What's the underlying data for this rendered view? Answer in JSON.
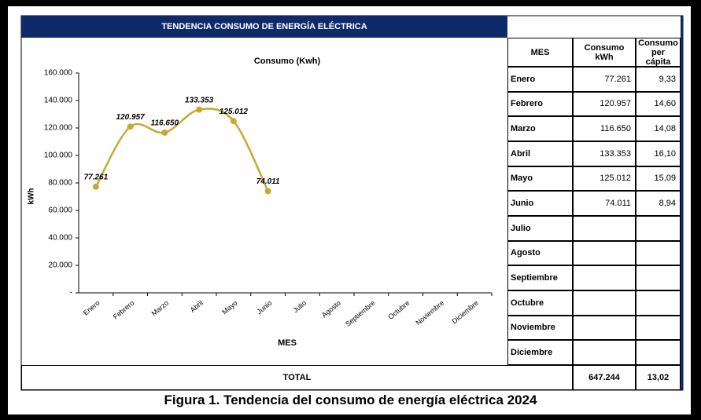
{
  "header": {
    "title": "TENDENCIA CONSUMO DE ENERGÍA ELÉCTRICA"
  },
  "caption": "Figura 1. Tendencia del consumo de energía eléctrica 2024",
  "chart_data": {
    "type": "line",
    "title": "Consumo (Kwh)",
    "x_label": "MES",
    "y_label": "kWh",
    "categories": [
      "Enero",
      "Febrero",
      "Marzo",
      "Abril",
      "Mayo",
      "Junio",
      "Julio",
      "Agosto",
      "Septiembre",
      "Octubre",
      "Noviembre",
      "Diciembre"
    ],
    "values": [
      77261,
      120957,
      116650,
      133353,
      125012,
      74011,
      null,
      null,
      null,
      null,
      null,
      null
    ],
    "value_labels": [
      "77.261",
      "120.957",
      "116.650",
      "133.353",
      "125.012",
      "74.011",
      null,
      null,
      null,
      null,
      null,
      null
    ],
    "color": "#c9a832",
    "ylim": [
      0,
      160000
    ],
    "yticks": [
      {
        "value": 0,
        "label": "-"
      },
      {
        "value": 20000,
        "label": "20.000"
      },
      {
        "value": 40000,
        "label": "40.000"
      },
      {
        "value": 60000,
        "label": "60.000"
      },
      {
        "value": 80000,
        "label": "80.000"
      },
      {
        "value": 100000,
        "label": "100.000"
      },
      {
        "value": 120000,
        "label": "120.000"
      },
      {
        "value": 140000,
        "label": "140.000"
      },
      {
        "value": 160000,
        "label": "160.000"
      }
    ],
    "grid": false
  },
  "table": {
    "columns": [
      "MES",
      "Consumo kWh",
      "Consumo per cápita"
    ],
    "rows": [
      [
        "Enero",
        "77.261",
        "9,33"
      ],
      [
        "Febrero",
        "120.957",
        "14,60"
      ],
      [
        "Marzo",
        "116.650",
        "14,08"
      ],
      [
        "Abril",
        "133.353",
        "16,10"
      ],
      [
        "Mayo",
        "125.012",
        "15,09"
      ],
      [
        "Junio",
        "74.011",
        "8,94"
      ],
      [
        "Julio",
        null,
        null
      ],
      [
        "Agosto",
        null,
        null
      ],
      [
        "Septiembre",
        null,
        null
      ],
      [
        "Octubre",
        null,
        null
      ],
      [
        "Noviembre",
        null,
        null
      ],
      [
        "Diciembre",
        null,
        null
      ]
    ],
    "total": [
      "TOTAL",
      "647.244",
      "13,02"
    ]
  }
}
